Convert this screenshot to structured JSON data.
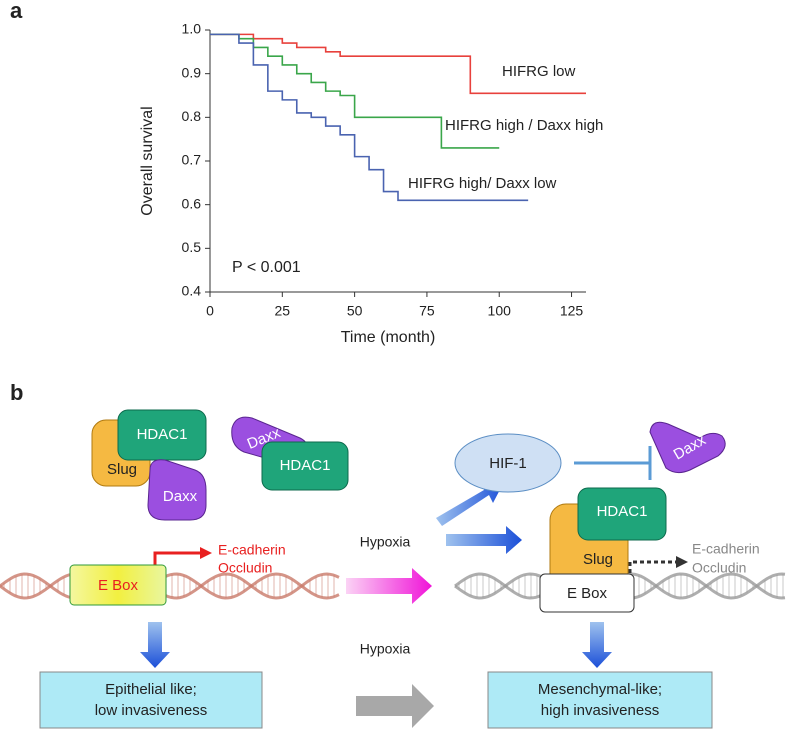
{
  "panel_labels": [
    "a",
    "b"
  ],
  "chart_data": {
    "type": "line",
    "step": true,
    "x_label": "Time (month)",
    "y_label": "Overall survival",
    "annotation": "P < 0.001",
    "x": [
      0,
      5,
      10,
      15,
      20,
      25,
      30,
      35,
      40,
      45,
      50,
      55,
      60,
      65,
      70,
      75,
      80,
      85,
      90,
      95,
      100,
      105,
      110,
      115,
      120,
      125,
      130
    ],
    "series": [
      {
        "name": "HIFRG low",
        "color": "#e8413c",
        "values": [
          0.99,
          0.99,
          0.99,
          0.98,
          0.98,
          0.97,
          0.96,
          0.96,
          0.95,
          0.94,
          0.94,
          0.94,
          0.94,
          0.94,
          0.94,
          0.94,
          0.94,
          0.94,
          0.855,
          0.855,
          0.855,
          0.855,
          0.855,
          0.855,
          0.855,
          0.855,
          0.855
        ]
      },
      {
        "name": "HIFRG high / Daxx high",
        "color": "#3aa64a",
        "values": [
          0.99,
          0.99,
          0.98,
          0.96,
          0.94,
          0.92,
          0.9,
          0.88,
          0.86,
          0.85,
          0.8,
          0.8,
          0.8,
          0.8,
          0.8,
          0.8,
          0.73,
          0.73,
          0.73,
          0.73,
          0.73,
          null,
          null,
          null,
          null,
          null,
          null
        ]
      },
      {
        "name": "HIFRG high/ Daxx low",
        "color": "#4a63b0",
        "values": [
          0.99,
          0.99,
          0.97,
          0.92,
          0.86,
          0.84,
          0.81,
          0.8,
          0.78,
          0.76,
          0.71,
          0.68,
          0.63,
          0.61,
          0.61,
          0.61,
          0.61,
          0.61,
          0.61,
          0.61,
          0.61,
          0.61,
          0.61,
          null,
          null,
          null,
          null
        ]
      }
    ],
    "xlim": [
      0,
      130
    ],
    "xticks": [
      0,
      25,
      50,
      75,
      100,
      125
    ],
    "ylim": [
      0.4,
      1
    ],
    "yticks": [
      0.4,
      0.5,
      0.6,
      0.7,
      0.8,
      0.9,
      {
        "value": 1,
        "label": "1.0"
      }
    ]
  },
  "diagram": {
    "left": {
      "complex": [
        "HDAC1",
        "Slug",
        "Daxx"
      ],
      "free": [
        "Daxx",
        "HDAC1"
      ],
      "genes": [
        "E-cadherin",
        "Occludin"
      ],
      "ebox": "E Box",
      "outcome": [
        "Epithelial like;",
        "low invasiveness"
      ]
    },
    "hypoxia": [
      "Hypoxia",
      "Hypoxia"
    ],
    "right": {
      "hif": "HIF-1",
      "daxx": "Daxx",
      "complex": [
        "HDAC1",
        "Slug"
      ],
      "genes": [
        "E-cadherin",
        "Occludin"
      ],
      "ebox": "E Box",
      "outcome": [
        "Mesenchymal-like;",
        "high invasiveness"
      ]
    }
  }
}
